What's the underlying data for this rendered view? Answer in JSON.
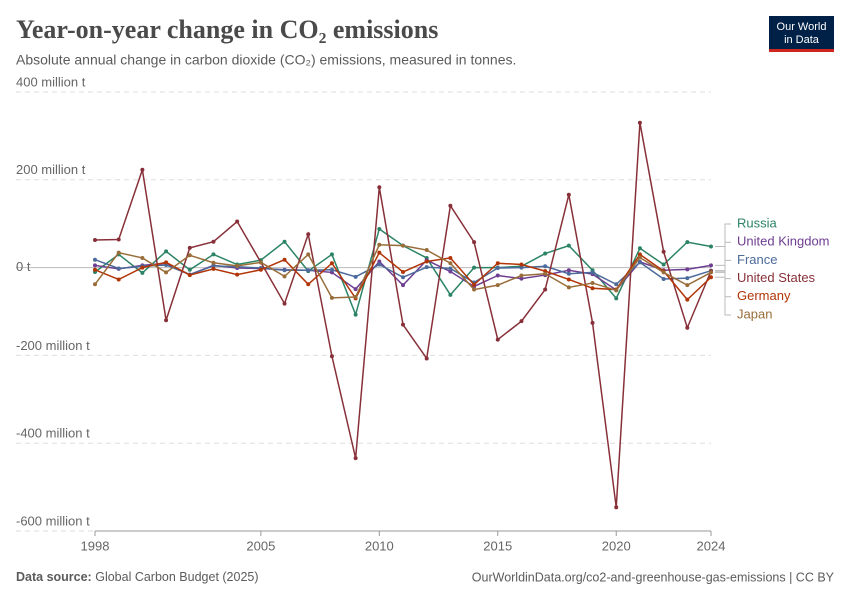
{
  "logo": {
    "line1": "Our World",
    "line2": "in Data"
  },
  "chart_data": {
    "type": "line",
    "title": "Year-on-year change in CO₂ emissions",
    "subtitle": "Absolute annual change in carbon dioxide (CO₂) emissions, measured in tonnes.",
    "source_label": "Data source:",
    "source": "Global Carbon Budget (2025)",
    "footer": "OurWorldinData.org/co2-and-greenhouse-gas-emissions | CC BY",
    "x": [
      1998,
      1999,
      2000,
      2001,
      2002,
      2003,
      2004,
      2005,
      2006,
      2007,
      2008,
      2009,
      2010,
      2011,
      2012,
      2013,
      2014,
      2015,
      2016,
      2017,
      2018,
      2019,
      2020,
      2021,
      2022,
      2023,
      2024
    ],
    "xlim": [
      1998,
      2024
    ],
    "xticks": [
      1998,
      2005,
      2010,
      2015,
      2020,
      2024
    ],
    "ylim": [
      -600,
      400
    ],
    "yticks": [
      {
        "value": 400,
        "label": "400 million t"
      },
      {
        "value": 200,
        "label": "200 million t"
      },
      {
        "value": 0,
        "label": "0 t"
      },
      {
        "value": -200,
        "label": "-200 million t"
      },
      {
        "value": -400,
        "label": "-400 million t"
      },
      {
        "value": -600,
        "label": "-600 million t"
      }
    ],
    "grid": true,
    "series": [
      {
        "name": "Russia",
        "color": "#2c8465",
        "values": [
          -10,
          30,
          -12,
          37,
          -5,
          30,
          7,
          17,
          59,
          -8,
          30,
          -107,
          88,
          50,
          22,
          -62,
          0,
          0,
          3,
          32,
          50,
          -6,
          -70,
          44,
          7,
          58,
          48
        ]
      },
      {
        "name": "United Kingdom",
        "color": "#6d3e91",
        "values": [
          5,
          -3,
          5,
          10,
          -16,
          5,
          -1,
          -2,
          -5,
          -6,
          -11,
          -49,
          14,
          -40,
          17,
          -9,
          -43,
          -18,
          -25,
          -17,
          -6,
          -15,
          -51,
          13,
          -6,
          -4,
          5
        ]
      },
      {
        "name": "France",
        "color": "#4c6a9c",
        "values": [
          18,
          -2,
          3,
          6,
          -16,
          4,
          2,
          -1,
          -6,
          -6,
          -5,
          -21,
          7,
          -22,
          1,
          -2,
          -34,
          -1,
          0,
          3,
          -14,
          -11,
          -38,
          12,
          -26,
          -24,
          -7
        ]
      },
      {
        "name": "United States",
        "color": "#883039",
        "values": [
          63,
          64,
          223,
          -120,
          45,
          59,
          105,
          12,
          -82,
          76,
          -202,
          -434,
          183,
          -130,
          -207,
          141,
          58,
          -164,
          -122,
          -50,
          166,
          -126,
          -546,
          330,
          36,
          -137,
          -8
        ]
      },
      {
        "name": "Germany",
        "color": "#b13507",
        "values": [
          -5,
          -27,
          0,
          12,
          -17,
          -3,
          -16,
          -5,
          18,
          -38,
          10,
          -70,
          34,
          -10,
          14,
          22,
          -39,
          10,
          7,
          -8,
          -27,
          -47,
          -50,
          30,
          -8,
          -73,
          -22
        ]
      },
      {
        "name": "Japan",
        "color": "#996d39",
        "values": [
          -38,
          34,
          22,
          -11,
          28,
          11,
          4,
          12,
          -20,
          30,
          -69,
          -67,
          52,
          50,
          40,
          10,
          -50,
          -40,
          -18,
          -14,
          -45,
          -35,
          -52,
          23,
          -11,
          -40,
          -11
        ]
      }
    ]
  }
}
